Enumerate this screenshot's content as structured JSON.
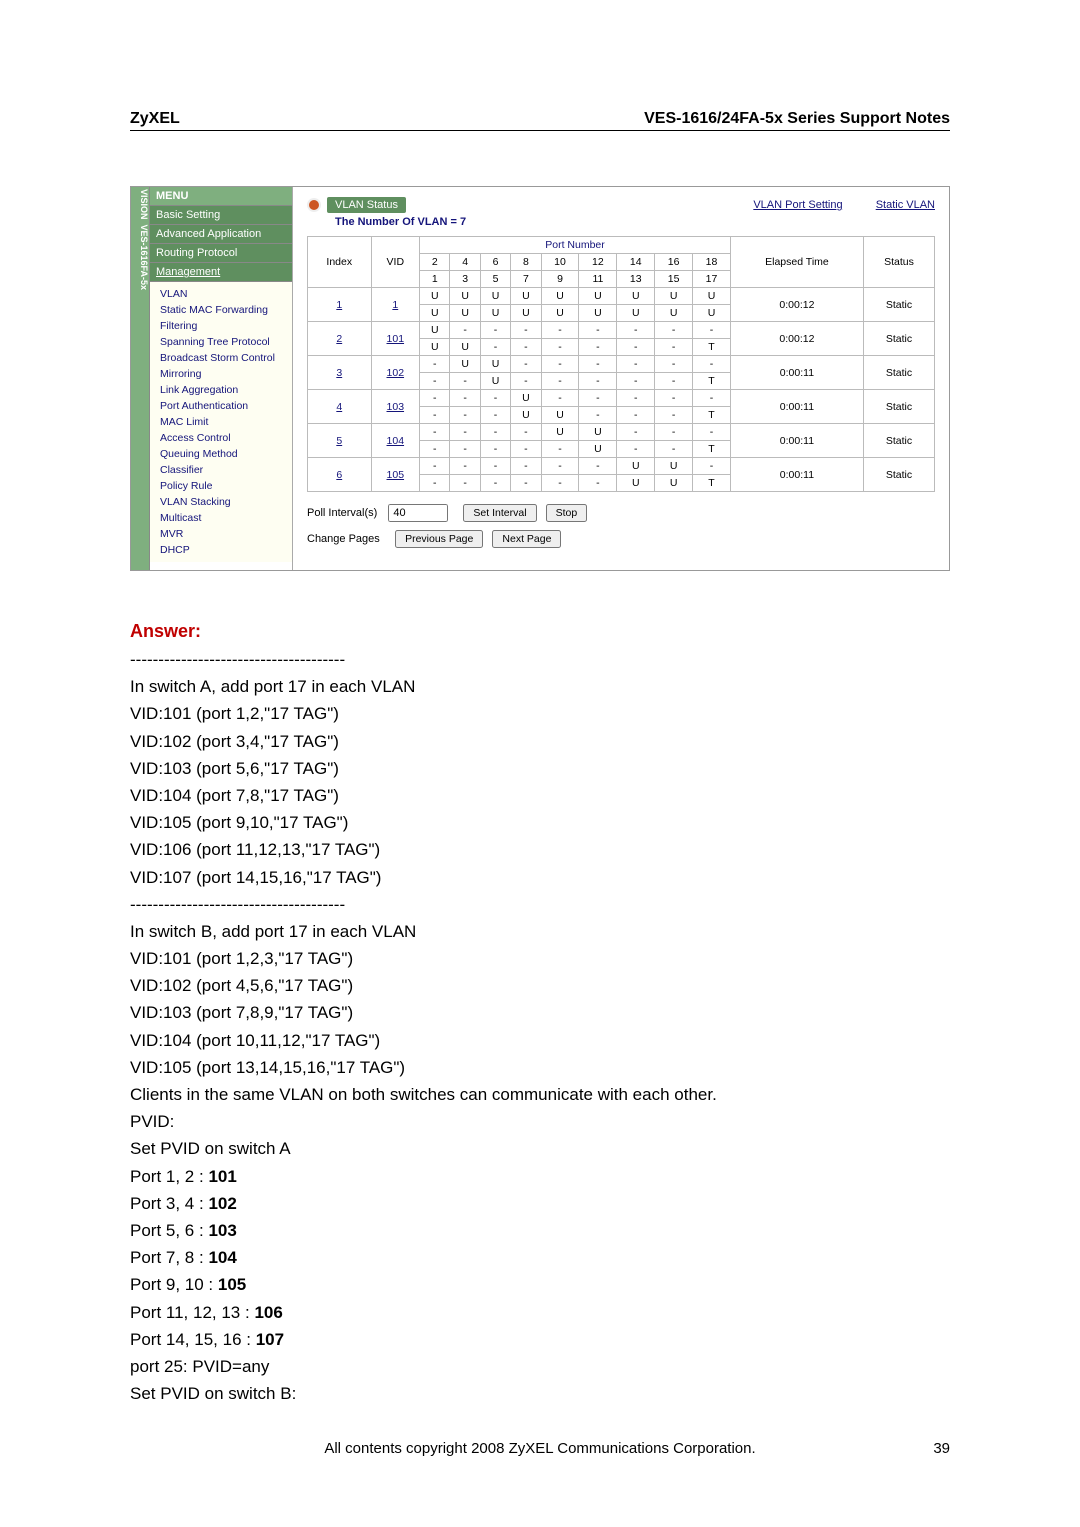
{
  "header": {
    "left": "ZyXEL",
    "right": "VES-1616/24FA-5x Series Support Notes"
  },
  "sidebar": {
    "title": "MENU",
    "sections": [
      "Basic Setting",
      "Advanced Application",
      "Routing Protocol",
      "Management"
    ],
    "items": [
      "VLAN",
      "Static MAC Forwarding",
      "Filtering",
      "Spanning Tree Protocol",
      "Broadcast Storm Control",
      "Mirroring",
      "Link Aggregation",
      "Port Authentication",
      "MAC Limit",
      "Access Control",
      "Queuing Method",
      "Classifier",
      "Policy Rule",
      "VLAN Stacking",
      "Multicast",
      "MVR",
      "DHCP"
    ]
  },
  "vlan": {
    "tab_label": "VLAN Status",
    "link1": "VLAN Port Setting",
    "link2": "Static VLAN",
    "count_label": "The Number Of VLAN = 7",
    "cols": {
      "index": "Index",
      "vid": "VID",
      "port": "Port Number",
      "elapsed": "Elapsed Time",
      "status": "Status"
    },
    "port_headers_top": [
      "2",
      "4",
      "6",
      "8",
      "10",
      "12",
      "14",
      "16",
      "18"
    ],
    "port_headers_bot": [
      "1",
      "3",
      "5",
      "7",
      "9",
      "11",
      "13",
      "15",
      "17"
    ],
    "rows": [
      {
        "index": "1",
        "vid": "1",
        "top": [
          "U",
          "U",
          "U",
          "U",
          "U",
          "U",
          "U",
          "U",
          "U"
        ],
        "bot": [
          "U",
          "U",
          "U",
          "U",
          "U",
          "U",
          "U",
          "U",
          "U"
        ],
        "elapsed": "0:00:12",
        "status": "Static"
      },
      {
        "index": "2",
        "vid": "101",
        "top": [
          "U",
          "-",
          "-",
          "-",
          "-",
          "-",
          "-",
          "-",
          "-"
        ],
        "bot": [
          "U",
          "U",
          "-",
          "-",
          "-",
          "-",
          "-",
          "-",
          "T"
        ],
        "elapsed": "0:00:12",
        "status": "Static"
      },
      {
        "index": "3",
        "vid": "102",
        "top": [
          "-",
          "U",
          "U",
          "-",
          "-",
          "-",
          "-",
          "-",
          "-"
        ],
        "bot": [
          "-",
          "-",
          "U",
          "-",
          "-",
          "-",
          "-",
          "-",
          "T"
        ],
        "elapsed": "0:00:11",
        "status": "Static"
      },
      {
        "index": "4",
        "vid": "103",
        "top": [
          "-",
          "-",
          "-",
          "U",
          "-",
          "-",
          "-",
          "-",
          "-"
        ],
        "bot": [
          "-",
          "-",
          "-",
          "U",
          "U",
          "-",
          "-",
          "-",
          "T"
        ],
        "elapsed": "0:00:11",
        "status": "Static"
      },
      {
        "index": "5",
        "vid": "104",
        "top": [
          "-",
          "-",
          "-",
          "-",
          "U",
          "U",
          "-",
          "-",
          "-"
        ],
        "bot": [
          "-",
          "-",
          "-",
          "-",
          "-",
          "U",
          "-",
          "-",
          "T"
        ],
        "elapsed": "0:00:11",
        "status": "Static"
      },
      {
        "index": "6",
        "vid": "105",
        "top": [
          "-",
          "-",
          "-",
          "-",
          "-",
          "-",
          "U",
          "U",
          "-"
        ],
        "bot": [
          "-",
          "-",
          "-",
          "-",
          "-",
          "-",
          "U",
          "U",
          "T"
        ],
        "elapsed": "0:00:11",
        "status": "Static"
      }
    ],
    "controls": {
      "poll_label": "Poll Interval(s)",
      "poll_value": "40",
      "set": "Set Interval",
      "stop": "Stop",
      "change_label": "Change Pages",
      "prev": "Previous Page",
      "next": "Next Page"
    }
  },
  "answer": {
    "heading": "Answer:",
    "sep": "--------------------------------------",
    "lines_a_intro": "In switch A, add port 17 in each VLAN",
    "lines_a": [
      "VID:101 (port 1,2,\"17 TAG\")",
      "VID:102 (port 3,4,\"17 TAG\")",
      "VID:103 (port 5,6,\"17 TAG\")",
      "VID:104 (port 7,8,\"17 TAG\")",
      "VID:105 (port 9,10,\"17 TAG\")",
      "VID:106 (port 11,12,13,\"17 TAG\")",
      "VID:107 (port 14,15,16,\"17 TAG\")"
    ],
    "lines_b_intro": "In switch B, add port 17 in each VLAN",
    "lines_b": [
      "VID:101 (port 1,2,3,\"17 TAG\")",
      "VID:102 (port 4,5,6,\"17 TAG\")",
      "VID:103 (port 7,8,9,\"17 TAG\")",
      "VID:104 (port 10,11,12,\"17 TAG\")",
      "VID:105 (port 13,14,15,16,\"17 TAG\")"
    ],
    "comm": "Clients in the same VLAN on both switches can communicate with each other.",
    "pvid_label": "PVID:",
    "pvid_a_h": "Set PVID on switch A",
    "pvid_a": [
      [
        "Port 1, 2 : ",
        "101"
      ],
      [
        "Port 3, 4 : ",
        "102"
      ],
      [
        "Port 5, 6 : ",
        "103"
      ],
      [
        "Port 7, 8 : ",
        "104"
      ],
      [
        "Port 9, 10 : ",
        "105"
      ],
      [
        "Port 11, 12, 13 : ",
        "106"
      ],
      [
        "Port 14, 15, 16 : ",
        "107"
      ]
    ],
    "port25": "port 25: PVID=any",
    "pvid_b_h": "Set PVID on switch B:"
  },
  "footer": {
    "text": "All contents copyright 2008 ZyXEL Communications Corporation.",
    "page": "39"
  }
}
